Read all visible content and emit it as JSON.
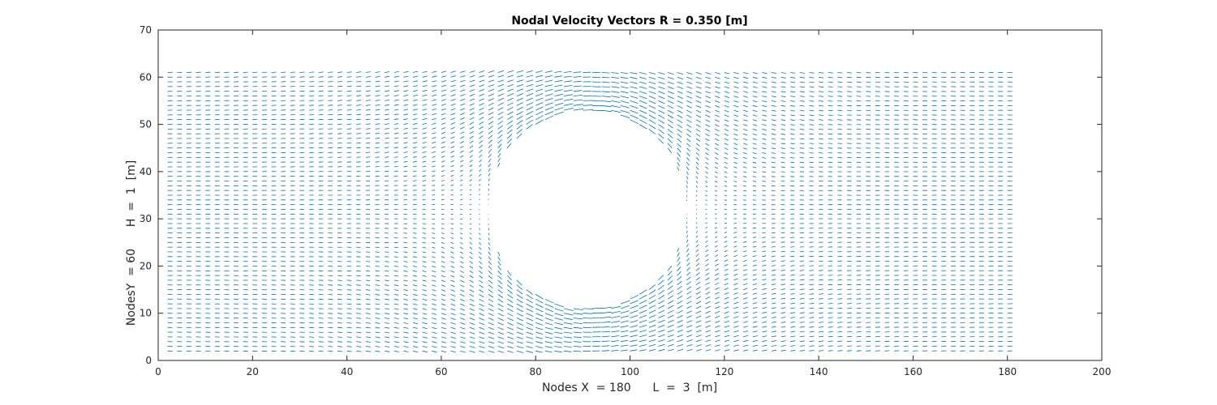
{
  "chart_data": {
    "type": "quiver",
    "title": "Nodal Velocity Vectors R = 0.350 [m]",
    "xlabel": "Nodes X  = 180      L  =  3  [m]",
    "ylabel": "NodesY  = 60      H  =  1  [m]",
    "xlim": [
      0,
      200
    ],
    "ylim": [
      0,
      70
    ],
    "xticks": [
      "0",
      "20",
      "40",
      "60",
      "80",
      "100",
      "120",
      "140",
      "160",
      "180",
      "200"
    ],
    "yticks": [
      "0",
      "10",
      "20",
      "30",
      "40",
      "50",
      "60",
      "70"
    ],
    "grid": false,
    "box": true,
    "field": {
      "nodes_x": 180,
      "nodes_y": 60,
      "x_range": [
        2,
        181
      ],
      "y_range": [
        2,
        61
      ],
      "obstacle": {
        "shape": "circle",
        "center": [
          91,
          32
        ],
        "radius": 21
      },
      "freestream_direction": "+x",
      "color": "#0072BD"
    }
  }
}
